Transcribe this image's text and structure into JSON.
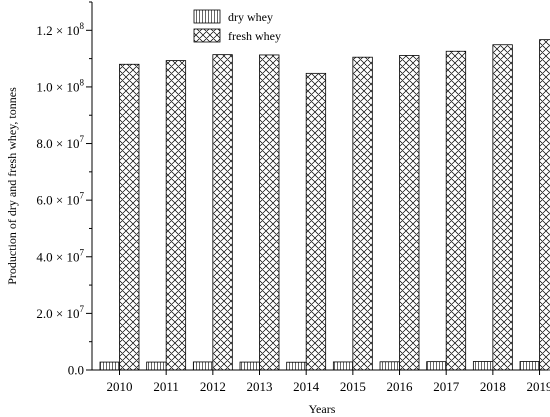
{
  "chart_data": {
    "type": "bar",
    "title": "",
    "xlabel": "Years",
    "ylabel": "Production of dry and fresh whey, tonnes",
    "categories": [
      "2010",
      "2011",
      "2012",
      "2013",
      "2014",
      "2015",
      "2016",
      "2017",
      "2018",
      "2019"
    ],
    "series": [
      {
        "name": "dry whey",
        "pattern": "vertical-lines",
        "values": [
          2800000,
          2800000,
          2850000,
          2800000,
          2750000,
          2850000,
          2900000,
          2950000,
          3000000,
          3000000
        ]
      },
      {
        "name": "fresh whey",
        "pattern": "crosshatch",
        "values": [
          108000000,
          109300000,
          111400000,
          111300000,
          104800000,
          110500000,
          111100000,
          112600000,
          114900000,
          116700000
        ]
      }
    ],
    "ylim": [
      0,
      130000000
    ],
    "yticks": [
      {
        "value": 0,
        "label": "0.0"
      },
      {
        "value": 20000000,
        "mant": "2.0",
        "exp": "7"
      },
      {
        "value": 40000000,
        "mant": "4.0",
        "exp": "7"
      },
      {
        "value": 60000000,
        "mant": "6.0",
        "exp": "7"
      },
      {
        "value": 80000000,
        "mant": "8.0",
        "exp": "7"
      },
      {
        "value": 100000000,
        "mant": "1.0",
        "exp": "8"
      },
      {
        "value": 120000000,
        "mant": "1.2",
        "exp": "8"
      }
    ],
    "times_symbol": "×",
    "base": "10",
    "grid": false,
    "legend_position": "top-left"
  }
}
